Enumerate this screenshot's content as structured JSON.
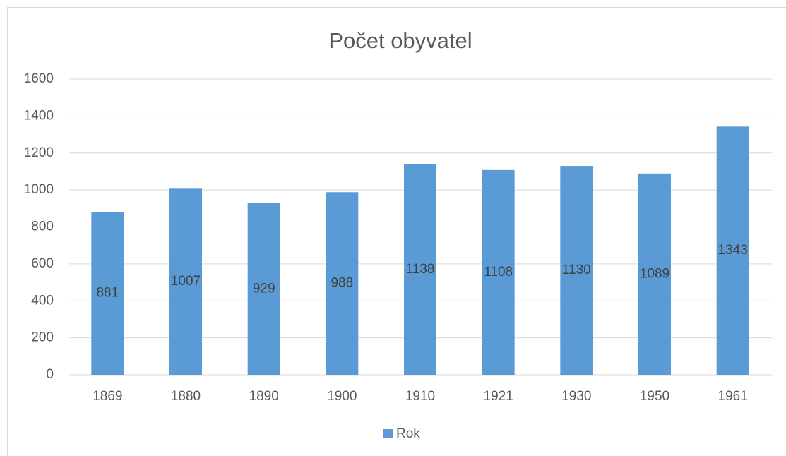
{
  "chart_data": {
    "type": "bar",
    "title": "Počet obyvatel",
    "categories": [
      "1869",
      "1880",
      "1890",
      "1900",
      "1910",
      "1921",
      "1930",
      "1950",
      "1961"
    ],
    "series": [
      {
        "name": "Rok",
        "color": "#5b9bd5",
        "values": [
          881,
          1007,
          929,
          988,
          1138,
          1108,
          1130,
          1089,
          1343
        ]
      }
    ],
    "ylim": [
      0,
      1600
    ],
    "yticks": [
      0,
      200,
      400,
      600,
      800,
      1000,
      1200,
      1400,
      1600
    ],
    "grid": true,
    "data_labels": true,
    "legend": "bottom"
  }
}
